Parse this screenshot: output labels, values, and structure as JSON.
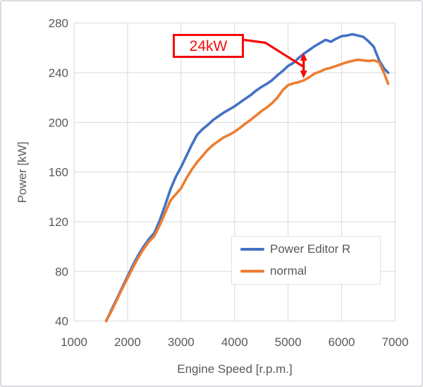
{
  "chart_data": {
    "type": "line",
    "xlabel": "Engine Speed [r.p.m.]",
    "ylabel": "Power [kW]",
    "xlim": [
      1000,
      7000
    ],
    "ylim": [
      40,
      280
    ],
    "xticks": [
      1000,
      2000,
      3000,
      4000,
      5000,
      6000,
      7000
    ],
    "yticks": [
      40,
      80,
      120,
      160,
      200,
      240,
      280
    ],
    "grid": true,
    "gridline_color": "#d9d9d9",
    "tick_label_color": "#595959",
    "legend_position": "inside lower right",
    "series": [
      {
        "name": "Power Editor R",
        "color": "#4472C4",
        "points": [
          [
            1600,
            40
          ],
          [
            1700,
            49
          ],
          [
            1800,
            58
          ],
          [
            1900,
            67
          ],
          [
            2000,
            76
          ],
          [
            2100,
            85
          ],
          [
            2200,
            93
          ],
          [
            2300,
            100
          ],
          [
            2400,
            106
          ],
          [
            2500,
            111
          ],
          [
            2600,
            121
          ],
          [
            2700,
            133
          ],
          [
            2800,
            146
          ],
          [
            2900,
            156
          ],
          [
            3000,
            164
          ],
          [
            3100,
            173
          ],
          [
            3200,
            182
          ],
          [
            3300,
            190
          ],
          [
            3400,
            194.5
          ],
          [
            3500,
            198
          ],
          [
            3600,
            202
          ],
          [
            3700,
            205
          ],
          [
            3800,
            208
          ],
          [
            3900,
            210.5
          ],
          [
            4000,
            213
          ],
          [
            4100,
            216
          ],
          [
            4200,
            219
          ],
          [
            4300,
            222
          ],
          [
            4400,
            225.5
          ],
          [
            4500,
            228.5
          ],
          [
            4600,
            231
          ],
          [
            4700,
            234
          ],
          [
            4800,
            238
          ],
          [
            4900,
            241.5
          ],
          [
            5000,
            245.5
          ],
          [
            5100,
            248
          ],
          [
            5200,
            252
          ],
          [
            5300,
            255.5
          ],
          [
            5400,
            258.5
          ],
          [
            5500,
            261.5
          ],
          [
            5600,
            264
          ],
          [
            5700,
            266.5
          ],
          [
            5800,
            265
          ],
          [
            5900,
            267.5
          ],
          [
            6000,
            269.5
          ],
          [
            6100,
            270
          ],
          [
            6200,
            271
          ],
          [
            6300,
            270
          ],
          [
            6400,
            269
          ],
          [
            6500,
            265.5
          ],
          [
            6600,
            261
          ],
          [
            6700,
            250
          ],
          [
            6800,
            243
          ],
          [
            6870,
            240
          ]
        ]
      },
      {
        "name": "normal",
        "color": "#ED7D31",
        "points": [
          [
            1600,
            40
          ],
          [
            1700,
            48
          ],
          [
            1800,
            57
          ],
          [
            1900,
            66
          ],
          [
            2000,
            74.5
          ],
          [
            2100,
            83
          ],
          [
            2200,
            91
          ],
          [
            2300,
            98
          ],
          [
            2400,
            104
          ],
          [
            2500,
            108.5
          ],
          [
            2600,
            117
          ],
          [
            2700,
            127
          ],
          [
            2800,
            137
          ],
          [
            2900,
            142
          ],
          [
            3000,
            147
          ],
          [
            3100,
            155
          ],
          [
            3200,
            162
          ],
          [
            3300,
            168
          ],
          [
            3400,
            173
          ],
          [
            3500,
            178
          ],
          [
            3600,
            182
          ],
          [
            3700,
            185
          ],
          [
            3800,
            188
          ],
          [
            3900,
            190
          ],
          [
            4000,
            192.5
          ],
          [
            4100,
            195.5
          ],
          [
            4200,
            199
          ],
          [
            4300,
            202
          ],
          [
            4400,
            205.5
          ],
          [
            4500,
            209
          ],
          [
            4600,
            212
          ],
          [
            4700,
            215.5
          ],
          [
            4800,
            220
          ],
          [
            4900,
            226
          ],
          [
            5000,
            230
          ],
          [
            5100,
            231.5
          ],
          [
            5200,
            232.5
          ],
          [
            5300,
            234
          ],
          [
            5400,
            236.5
          ],
          [
            5500,
            239.5
          ],
          [
            5600,
            241
          ],
          [
            5700,
            243
          ],
          [
            5800,
            244
          ],
          [
            5900,
            245.5
          ],
          [
            6000,
            247
          ],
          [
            6100,
            248.5
          ],
          [
            6200,
            249.5
          ],
          [
            6300,
            250.5
          ],
          [
            6400,
            250
          ],
          [
            6500,
            249.5
          ],
          [
            6600,
            250
          ],
          [
            6700,
            248.5
          ],
          [
            6800,
            239
          ],
          [
            6870,
            231
          ]
        ]
      }
    ],
    "annotation": {
      "label": "24kW",
      "color": "#f40b0b",
      "arrow_rpm": 5290,
      "arrow_top_kw": 256,
      "arrow_bottom_kw": 235.5
    }
  }
}
